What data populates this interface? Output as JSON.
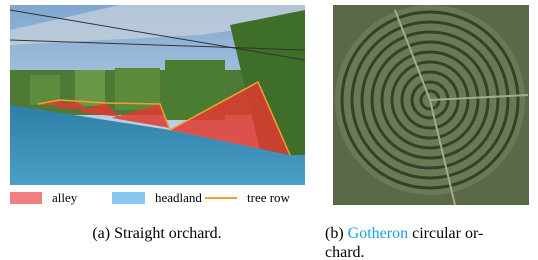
{
  "figure": {
    "legend": [
      "alley",
      "headland",
      "tree row"
    ],
    "subfigures": [
      {
        "label": "(a)",
        "caption": "Straight orchard."
      },
      {
        "label": "(b)",
        "link": "Gotheron",
        "caption_lines": [
          "circular or-",
          "chard."
        ]
      }
    ]
  }
}
